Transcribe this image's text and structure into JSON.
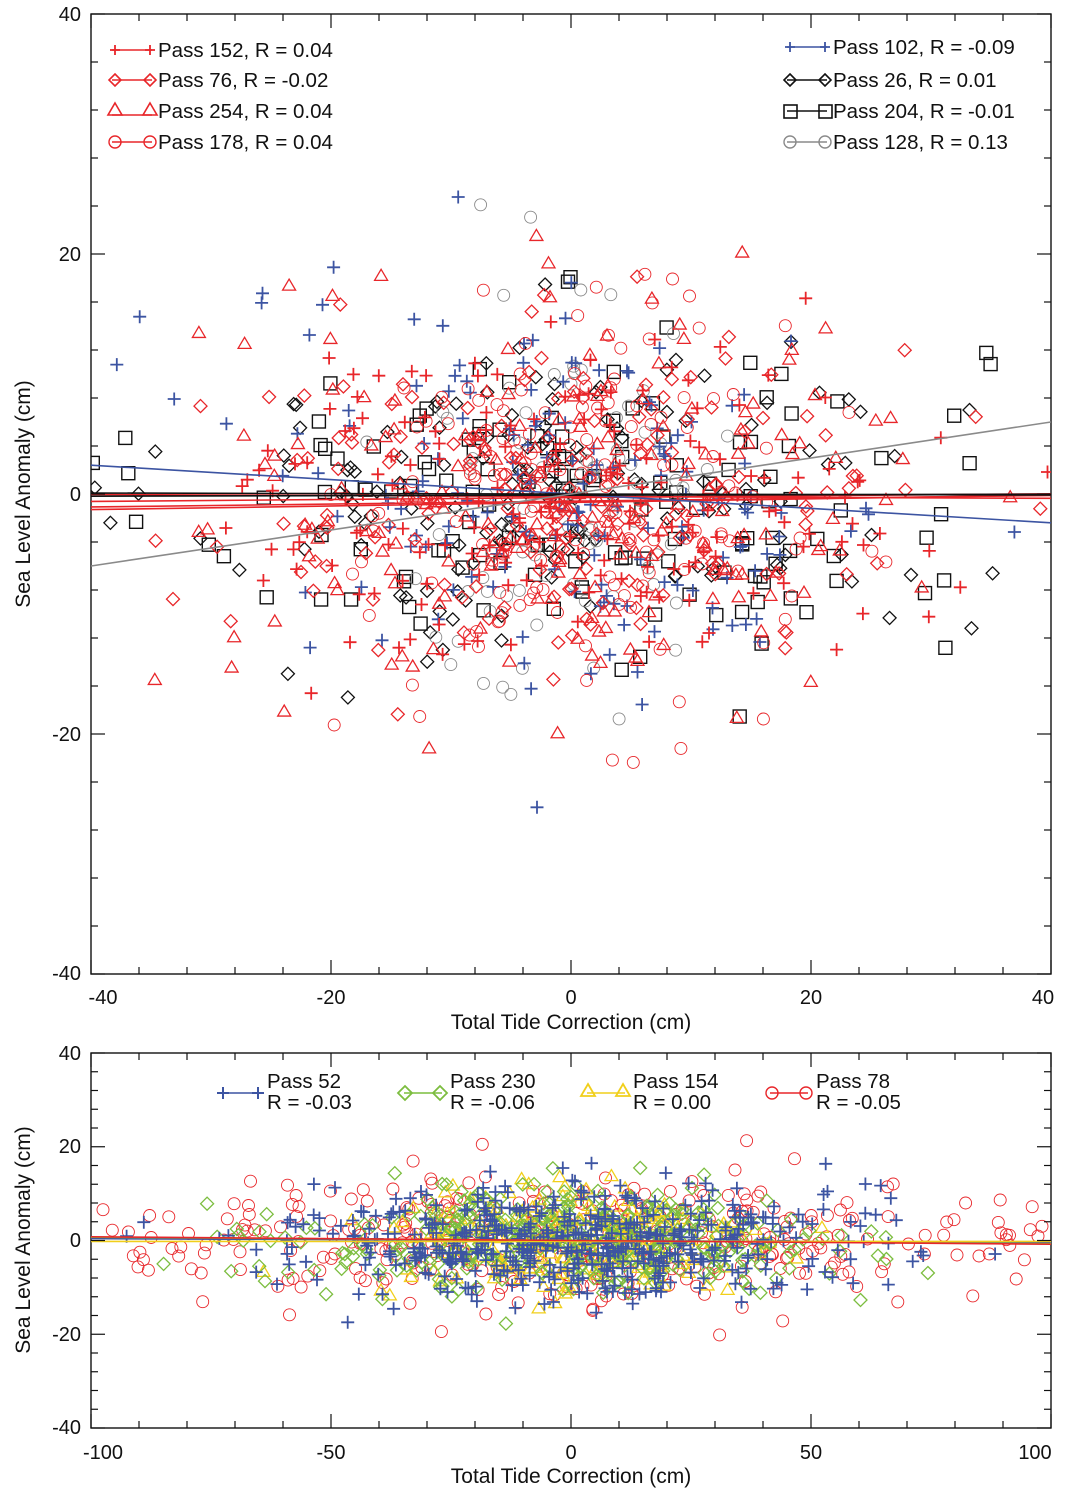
{
  "colors": {
    "red": "#e8262a",
    "blue": "#3c54a2",
    "black": "#111111",
    "gray": "#8a8a8a",
    "green": "#7cbd3f",
    "yellow": "#f1cf1b"
  },
  "chart_data": [
    {
      "type": "scatter",
      "xlabel": "Total Tide Correction (cm)",
      "ylabel": "Sea Level Anomaly (cm)",
      "xlim": [
        -40,
        40
      ],
      "ylim": [
        -40,
        40
      ],
      "xticks": [
        -40,
        -20,
        0,
        20,
        40
      ],
      "yticks": [
        -40,
        -20,
        0,
        20,
        40
      ],
      "xticklabels": [
        "-40",
        "-20",
        "0",
        "20",
        "40"
      ],
      "yticklabels": [
        "-40",
        "-20",
        "0",
        "20",
        "40"
      ],
      "grid": false,
      "legend_placement": "top-left and top-right",
      "series": [
        {
          "name": "Pass 152, R =  0.04",
          "marker": "plus",
          "color": "red",
          "fit_intercept": -0.3,
          "fit_slope": 0.008,
          "spread_x": 14,
          "spread_y": 6.5,
          "points": 180
        },
        {
          "name": "Pass 76, R = -0.02",
          "marker": "diamond",
          "color": "red",
          "fit_intercept": -0.2,
          "fit_slope": -0.004,
          "spread_x": 15,
          "spread_y": 6.5,
          "points": 180
        },
        {
          "name": "Pass 254, R =  0.04",
          "marker": "triangle",
          "color": "red",
          "fit_intercept": -0.6,
          "fit_slope": 0.012,
          "spread_x": 14,
          "spread_y": 8.5,
          "points": 200
        },
        {
          "name": "Pass 178, R =  0.04",
          "marker": "circle",
          "color": "red",
          "fit_intercept": -0.7,
          "fit_slope": 0.015,
          "spread_x": 9,
          "spread_y": 8,
          "points": 170
        },
        {
          "name": "Pass 102, R = -0.09",
          "marker": "plus",
          "color": "blue",
          "fit_intercept": 0.0,
          "fit_slope": -0.06,
          "spread_x": 14,
          "spread_y": 8,
          "points": 170
        },
        {
          "name": "Pass 26, R =  0.01",
          "marker": "diamond",
          "color": "black",
          "fit_intercept": -0.1,
          "fit_slope": 0.002,
          "spread_x": 16,
          "spread_y": 6.5,
          "points": 160
        },
        {
          "name": "Pass 204, R = -0.01",
          "marker": "square",
          "color": "black",
          "fit_intercept": 0.0,
          "fit_slope": -0.002,
          "spread_x": 17,
          "spread_y": 7,
          "points": 150
        },
        {
          "name": "Pass 128, R =  0.13",
          "marker": "circle",
          "color": "gray",
          "fit_intercept": 0.0,
          "fit_slope": 0.15,
          "spread_x": 7,
          "spread_y": 9,
          "points": 90
        }
      ]
    },
    {
      "type": "scatter",
      "xlabel": "Total Tide Correction (cm)",
      "ylabel": "Sea Level Anomaly (cm)",
      "xlim": [
        -100,
        100
      ],
      "ylim": [
        -40,
        40
      ],
      "xticks": [
        -100,
        -50,
        0,
        50,
        100
      ],
      "yticks": [
        -40,
        -20,
        0,
        20,
        40
      ],
      "xticklabels": [
        "-100",
        "-50",
        "0",
        "50",
        "100"
      ],
      "yticklabels": [
        "-40",
        "-20",
        "0",
        "20",
        "40"
      ],
      "grid": false,
      "legend_placement": "top",
      "series": [
        {
          "name": "Pass 52",
          "r_label": "R = -0.03",
          "marker": "plus",
          "color": "blue",
          "fit_intercept": 0.0,
          "fit_slope": -0.004,
          "spread_x": 28,
          "spread_y": 6,
          "points": 520
        },
        {
          "name": "Pass 230",
          "r_label": "R = -0.06",
          "marker": "diamond",
          "color": "green",
          "fit_intercept": 0.0,
          "fit_slope": -0.007,
          "spread_x": 28,
          "spread_y": 5.5,
          "points": 380
        },
        {
          "name": "Pass 154",
          "r_label": "R =  0.00",
          "marker": "triangle",
          "color": "yellow",
          "fit_intercept": -0.2,
          "fit_slope": 0.0,
          "spread_x": 20,
          "spread_y": 6.5,
          "points": 240
        },
        {
          "name": "Pass 78",
          "r_label": "R = -0.05",
          "marker": "circle",
          "color": "red",
          "fit_intercept": 0.0,
          "fit_slope": -0.008,
          "spread_x": 55,
          "spread_y": 6.5,
          "points": 420
        }
      ]
    }
  ]
}
